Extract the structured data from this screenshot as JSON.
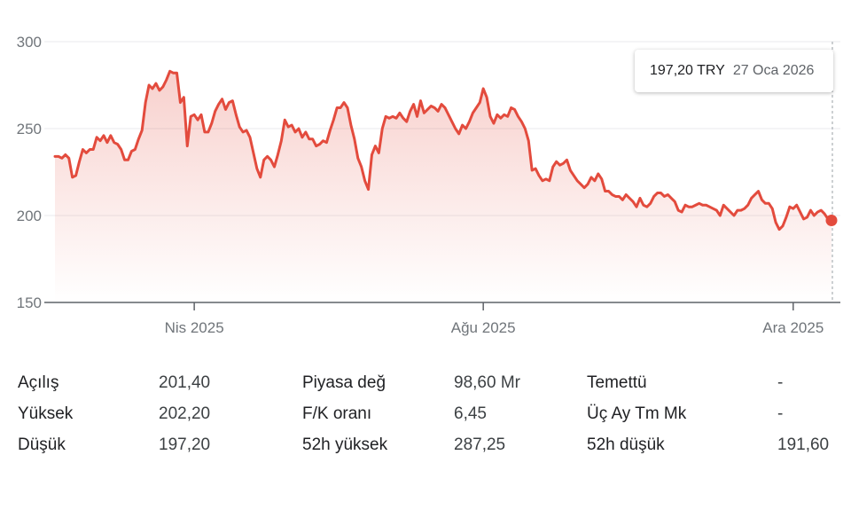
{
  "chart_data": {
    "type": "area",
    "ylim": [
      150,
      300
    ],
    "y_ticks": [
      "300",
      "250",
      "200",
      "150"
    ],
    "x_ticks": [
      {
        "label": "Nis 2025",
        "index": 40
      },
      {
        "label": "Ağu 2025",
        "index": 123
      },
      {
        "label": "Ara 2025",
        "index": 212
      }
    ],
    "grid": true,
    "line_color": "#e34b3d",
    "y": [
      234,
      234,
      233,
      235,
      233,
      222,
      223,
      231,
      238,
      236,
      238,
      238,
      245,
      243,
      246,
      242,
      246,
      242,
      241,
      238,
      232,
      232,
      237,
      238,
      244,
      249,
      265,
      275,
      273,
      276,
      272,
      274,
      278,
      283,
      282,
      282,
      265,
      268,
      240,
      257,
      258,
      255,
      258,
      248,
      248,
      253,
      260,
      264,
      267,
      261,
      265,
      266,
      258,
      251,
      248,
      249,
      245,
      236,
      227,
      222,
      232,
      234,
      232,
      228,
      235,
      243,
      255,
      251,
      252,
      248,
      250,
      245,
      248,
      244,
      244,
      240,
      241,
      243,
      242,
      249,
      255,
      262,
      262,
      265,
      262,
      252,
      244,
      233,
      228,
      220,
      215,
      235,
      240,
      236,
      250,
      257,
      256,
      257,
      256,
      259,
      256,
      254,
      260,
      264,
      257,
      266,
      259,
      261,
      263,
      262,
      260,
      264,
      262,
      258,
      254,
      250,
      247,
      252,
      250,
      254,
      259,
      262,
      265,
      273,
      268,
      257,
      253,
      258,
      256,
      258,
      257,
      262,
      261,
      257,
      254,
      250,
      243,
      226,
      227,
      223,
      220,
      221,
      220,
      228,
      231,
      229,
      230,
      232,
      226,
      223,
      220,
      218,
      216,
      218,
      222,
      220,
      224,
      221,
      214,
      214,
      212,
      211,
      211,
      209,
      212,
      210,
      208,
      205,
      210,
      206,
      205,
      207,
      211,
      213,
      213,
      211,
      212,
      210,
      208,
      203,
      202,
      206,
      205,
      205,
      206,
      207,
      206,
      206,
      205,
      204,
      203,
      200,
      206,
      204,
      202,
      200,
      203,
      203,
      204,
      206,
      210,
      212,
      214,
      209,
      207,
      207,
      204,
      196,
      192,
      194,
      199,
      205,
      204,
      206,
      202,
      198,
      199,
      203,
      200,
      202,
      203,
      201,
      198,
      197.2
    ],
    "series": [
      {
        "name": "",
        "last_value": 197.2
      }
    ],
    "tooltip": {
      "price": "197,20 TRY",
      "date": "27 Oca 2026"
    }
  },
  "stats": [
    [
      {
        "label": "Açılış",
        "value": "201,40"
      },
      {
        "label": "Piyasa değ",
        "value": "98,60 Mr"
      },
      {
        "label": "Temettü",
        "value": "-"
      }
    ],
    [
      {
        "label": "Yüksek",
        "value": "202,20"
      },
      {
        "label": "F/K oranı",
        "value": "6,45"
      },
      {
        "label": "Üç Ay Tm Mk",
        "value": "-"
      }
    ],
    [
      {
        "label": "Düşük",
        "value": "197,20"
      },
      {
        "label": "52h yüksek",
        "value": "287,25"
      },
      {
        "label": "52h düşük",
        "value": "191,60"
      }
    ]
  ]
}
